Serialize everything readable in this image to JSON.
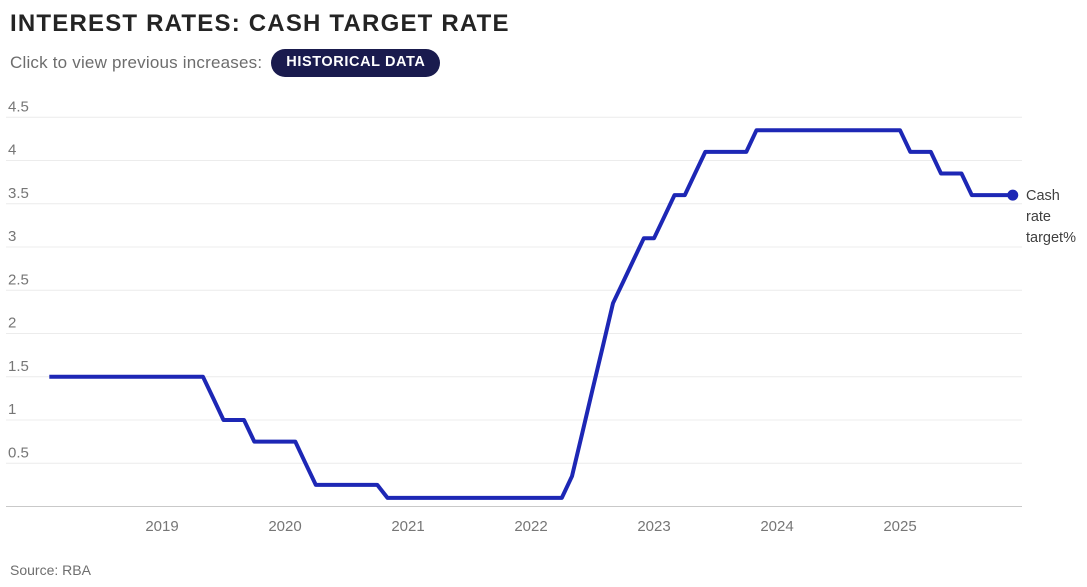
{
  "header": {
    "title": "INTEREST RATES: CASH TARGET RATE",
    "subtitle": "Click to view previous increases:",
    "cta_label": "HISTORICAL DATA"
  },
  "chart_data": {
    "type": "line",
    "title": "INTEREST RATES: CASH TARGET RATE",
    "series_label": "Cash rate target%",
    "unit": "%",
    "x_range": [
      "2018-02",
      "2025-12"
    ],
    "ylim": [
      0,
      4.5
    ],
    "y_ticks": [
      0.5,
      1,
      1.5,
      2,
      2.5,
      3,
      3.5,
      4,
      4.5
    ],
    "x_ticks": [
      2019,
      2020,
      2021,
      2022,
      2023,
      2024,
      2025
    ],
    "grid": true,
    "legend_position": "right",
    "line_color": "#1d27b5",
    "interpolation": "monthly-linear",
    "points": [
      {
        "date": "2018-02",
        "rate": 1.5
      },
      {
        "date": "2019-06",
        "rate": 1.25
      },
      {
        "date": "2019-07",
        "rate": 1.0
      },
      {
        "date": "2019-10",
        "rate": 0.75
      },
      {
        "date": "2020-03",
        "rate": 0.5
      },
      {
        "date": "2020-04",
        "rate": 0.25
      },
      {
        "date": "2020-11",
        "rate": 0.1
      },
      {
        "date": "2022-05",
        "rate": 0.35
      },
      {
        "date": "2022-06",
        "rate": 0.85
      },
      {
        "date": "2022-07",
        "rate": 1.35
      },
      {
        "date": "2022-08",
        "rate": 1.85
      },
      {
        "date": "2022-09",
        "rate": 2.35
      },
      {
        "date": "2022-10",
        "rate": 2.6
      },
      {
        "date": "2022-11",
        "rate": 2.85
      },
      {
        "date": "2022-12",
        "rate": 3.1
      },
      {
        "date": "2023-02",
        "rate": 3.35
      },
      {
        "date": "2023-03",
        "rate": 3.6
      },
      {
        "date": "2023-05",
        "rate": 3.85
      },
      {
        "date": "2023-06",
        "rate": 4.1
      },
      {
        "date": "2023-11",
        "rate": 4.35
      },
      {
        "date": "2025-02",
        "rate": 4.1
      },
      {
        "date": "2025-05",
        "rate": 3.85
      },
      {
        "date": "2025-08",
        "rate": 3.6
      }
    ]
  },
  "footer": {
    "source": "Source: RBA"
  },
  "colors": {
    "line_blue": "#1d27b5",
    "button_navy": "#1a1b4e",
    "title_text": "#242424",
    "subtitle_text": "#6d6d6d",
    "tick_text": "#767676",
    "gridline": "#ececec",
    "axis_line": "#c9c9c9",
    "background": "#ffffff"
  }
}
